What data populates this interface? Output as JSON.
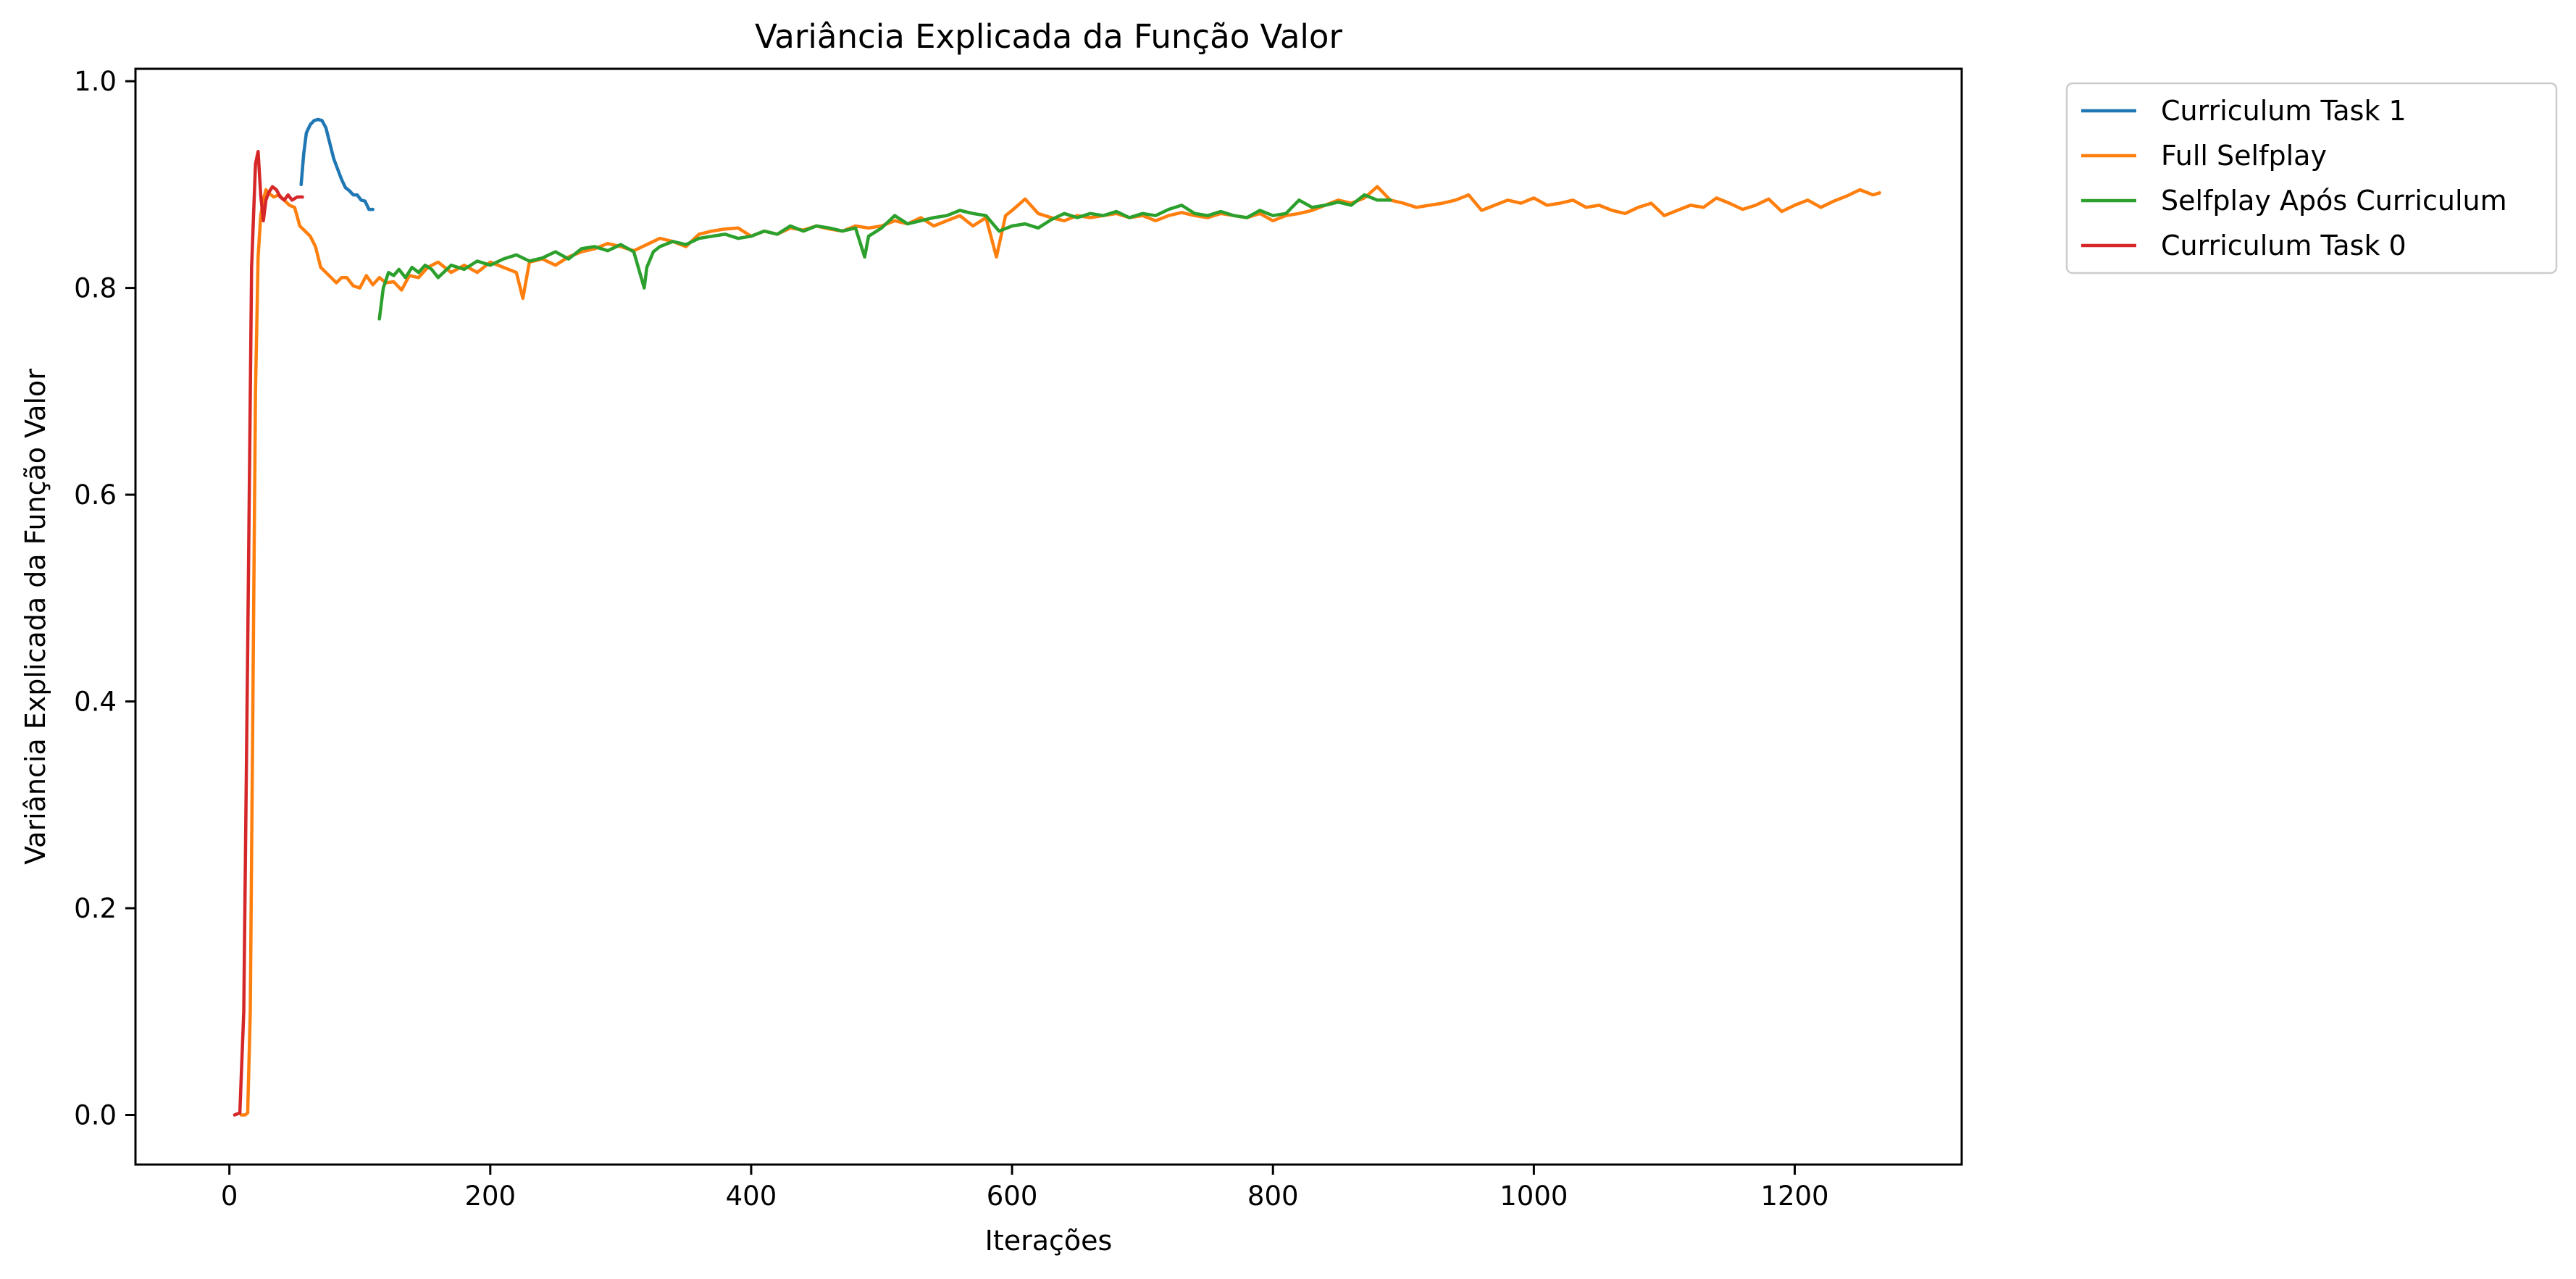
{
  "chart_data": {
    "type": "line",
    "title": "Variância Explicada da Função Valor",
    "xlabel": "Iterações",
    "ylabel": "Variância Explicada da Função Valor",
    "xlim": [
      -72,
      1328
    ],
    "ylim": [
      -0.048,
      1.012
    ],
    "x_ticks": [
      0,
      200,
      400,
      600,
      800,
      1000,
      1200
    ],
    "x_tick_labels": [
      "0",
      "200",
      "400",
      "600",
      "800",
      "1000",
      "1200"
    ],
    "y_ticks": [
      0.0,
      0.2,
      0.4,
      0.6,
      0.8,
      1.0
    ],
    "y_tick_labels": [
      "0.0",
      "0.2",
      "0.4",
      "0.6",
      "0.8",
      "1.0"
    ],
    "grid": false,
    "legend_position": "outside-top-right",
    "series": [
      {
        "name": "Curriculum Task 1",
        "color": "#1f77b4",
        "x": [
          55,
          57,
          59,
          62,
          65,
          68,
          71,
          74,
          77,
          80,
          83,
          86,
          89,
          92,
          95,
          98,
          101,
          104,
          107,
          110
        ],
        "y": [
          0.9,
          0.93,
          0.95,
          0.958,
          0.962,
          0.963,
          0.962,
          0.955,
          0.94,
          0.925,
          0.915,
          0.905,
          0.897,
          0.894,
          0.89,
          0.89,
          0.885,
          0.884,
          0.876,
          0.876
        ]
      },
      {
        "name": "Full Selfplay",
        "color": "#ff7f0e",
        "x": [
          9,
          12,
          14,
          16,
          18,
          20,
          22,
          24,
          26,
          28,
          30,
          34,
          38,
          42,
          46,
          50,
          54,
          58,
          62,
          66,
          70,
          74,
          78,
          82,
          86,
          90,
          95,
          100,
          105,
          110,
          115,
          120,
          126,
          132,
          138,
          145,
          152,
          160,
          170,
          180,
          190,
          200,
          210,
          220,
          225,
          230,
          240,
          250,
          260,
          270,
          280,
          290,
          300,
          310,
          320,
          330,
          340,
          350,
          360,
          370,
          380,
          390,
          400,
          410,
          420,
          430,
          440,
          450,
          460,
          470,
          480,
          490,
          500,
          510,
          520,
          530,
          540,
          550,
          560,
          570,
          580,
          588,
          595,
          600,
          610,
          620,
          630,
          640,
          650,
          660,
          670,
          680,
          690,
          700,
          710,
          720,
          730,
          740,
          750,
          760,
          770,
          780,
          790,
          800,
          810,
          820,
          830,
          840,
          850,
          860,
          870,
          880,
          890,
          900,
          910,
          920,
          930,
          940,
          950,
          960,
          970,
          980,
          990,
          1000,
          1010,
          1020,
          1030,
          1040,
          1050,
          1060,
          1070,
          1080,
          1090,
          1100,
          1110,
          1120,
          1130,
          1140,
          1150,
          1160,
          1170,
          1180,
          1190,
          1200,
          1210,
          1220,
          1230,
          1240,
          1250,
          1260,
          1265
        ],
        "y": [
          0.0,
          0.0,
          0.002,
          0.1,
          0.4,
          0.7,
          0.83,
          0.87,
          0.885,
          0.895,
          0.892,
          0.888,
          0.89,
          0.885,
          0.88,
          0.878,
          0.86,
          0.855,
          0.85,
          0.84,
          0.82,
          0.815,
          0.81,
          0.805,
          0.81,
          0.81,
          0.802,
          0.8,
          0.812,
          0.803,
          0.81,
          0.805,
          0.806,
          0.798,
          0.812,
          0.81,
          0.82,
          0.825,
          0.815,
          0.822,
          0.815,
          0.825,
          0.82,
          0.815,
          0.79,
          0.825,
          0.828,
          0.822,
          0.83,
          0.835,
          0.838,
          0.843,
          0.84,
          0.836,
          0.842,
          0.848,
          0.845,
          0.84,
          0.852,
          0.855,
          0.857,
          0.858,
          0.85,
          0.855,
          0.852,
          0.858,
          0.856,
          0.86,
          0.857,
          0.855,
          0.86,
          0.858,
          0.86,
          0.865,
          0.862,
          0.868,
          0.86,
          0.865,
          0.87,
          0.86,
          0.868,
          0.83,
          0.87,
          0.875,
          0.886,
          0.872,
          0.868,
          0.865,
          0.87,
          0.868,
          0.87,
          0.872,
          0.868,
          0.87,
          0.865,
          0.87,
          0.873,
          0.87,
          0.868,
          0.872,
          0.87,
          0.868,
          0.872,
          0.865,
          0.87,
          0.872,
          0.875,
          0.88,
          0.885,
          0.882,
          0.887,
          0.898,
          0.885,
          0.882,
          0.878,
          0.88,
          0.882,
          0.885,
          0.89,
          0.875,
          0.88,
          0.885,
          0.882,
          0.887,
          0.88,
          0.882,
          0.885,
          0.878,
          0.88,
          0.875,
          0.872,
          0.878,
          0.882,
          0.87,
          0.875,
          0.88,
          0.878,
          0.887,
          0.882,
          0.876,
          0.88,
          0.886,
          0.874,
          0.88,
          0.885,
          0.878,
          0.884,
          0.889,
          0.895,
          0.89,
          0.892
        ]
      },
      {
        "name": "Selfplay Após Curriculum",
        "color": "#2ca02c",
        "x": [
          115,
          118,
          122,
          126,
          130,
          135,
          140,
          145,
          150,
          155,
          160,
          170,
          180,
          190,
          200,
          210,
          220,
          230,
          240,
          250,
          260,
          270,
          280,
          290,
          300,
          310,
          318,
          320,
          325,
          330,
          340,
          350,
          360,
          370,
          380,
          390,
          400,
          410,
          420,
          430,
          440,
          450,
          460,
          470,
          480,
          487,
          490,
          500,
          510,
          520,
          530,
          540,
          550,
          560,
          570,
          580,
          590,
          600,
          610,
          620,
          630,
          640,
          650,
          660,
          670,
          680,
          690,
          700,
          710,
          720,
          730,
          740,
          750,
          760,
          770,
          780,
          790,
          800,
          810,
          820,
          830,
          840,
          850,
          860,
          870,
          880,
          890
        ],
        "y": [
          0.77,
          0.8,
          0.815,
          0.812,
          0.818,
          0.81,
          0.82,
          0.815,
          0.822,
          0.818,
          0.81,
          0.822,
          0.818,
          0.826,
          0.822,
          0.828,
          0.832,
          0.826,
          0.829,
          0.835,
          0.828,
          0.838,
          0.84,
          0.836,
          0.842,
          0.835,
          0.8,
          0.82,
          0.835,
          0.84,
          0.845,
          0.842,
          0.848,
          0.85,
          0.852,
          0.848,
          0.85,
          0.855,
          0.852,
          0.86,
          0.855,
          0.86,
          0.858,
          0.855,
          0.858,
          0.83,
          0.85,
          0.858,
          0.87,
          0.862,
          0.865,
          0.868,
          0.87,
          0.875,
          0.872,
          0.87,
          0.855,
          0.86,
          0.862,
          0.858,
          0.866,
          0.872,
          0.868,
          0.872,
          0.87,
          0.874,
          0.868,
          0.872,
          0.87,
          0.876,
          0.88,
          0.872,
          0.87,
          0.874,
          0.87,
          0.868,
          0.875,
          0.87,
          0.872,
          0.885,
          0.878,
          0.88,
          0.883,
          0.88,
          0.89,
          0.885,
          0.885
        ]
      },
      {
        "name": "Curriculum Task 0",
        "color": "#d62728",
        "x": [
          4,
          8,
          11,
          14,
          17,
          20,
          22,
          24,
          26,
          28,
          30,
          33,
          36,
          39,
          42,
          45,
          48,
          52,
          56
        ],
        "y": [
          0.0,
          0.002,
          0.1,
          0.45,
          0.82,
          0.92,
          0.932,
          0.89,
          0.865,
          0.885,
          0.892,
          0.898,
          0.895,
          0.888,
          0.885,
          0.89,
          0.885,
          0.888,
          0.888
        ]
      }
    ]
  }
}
